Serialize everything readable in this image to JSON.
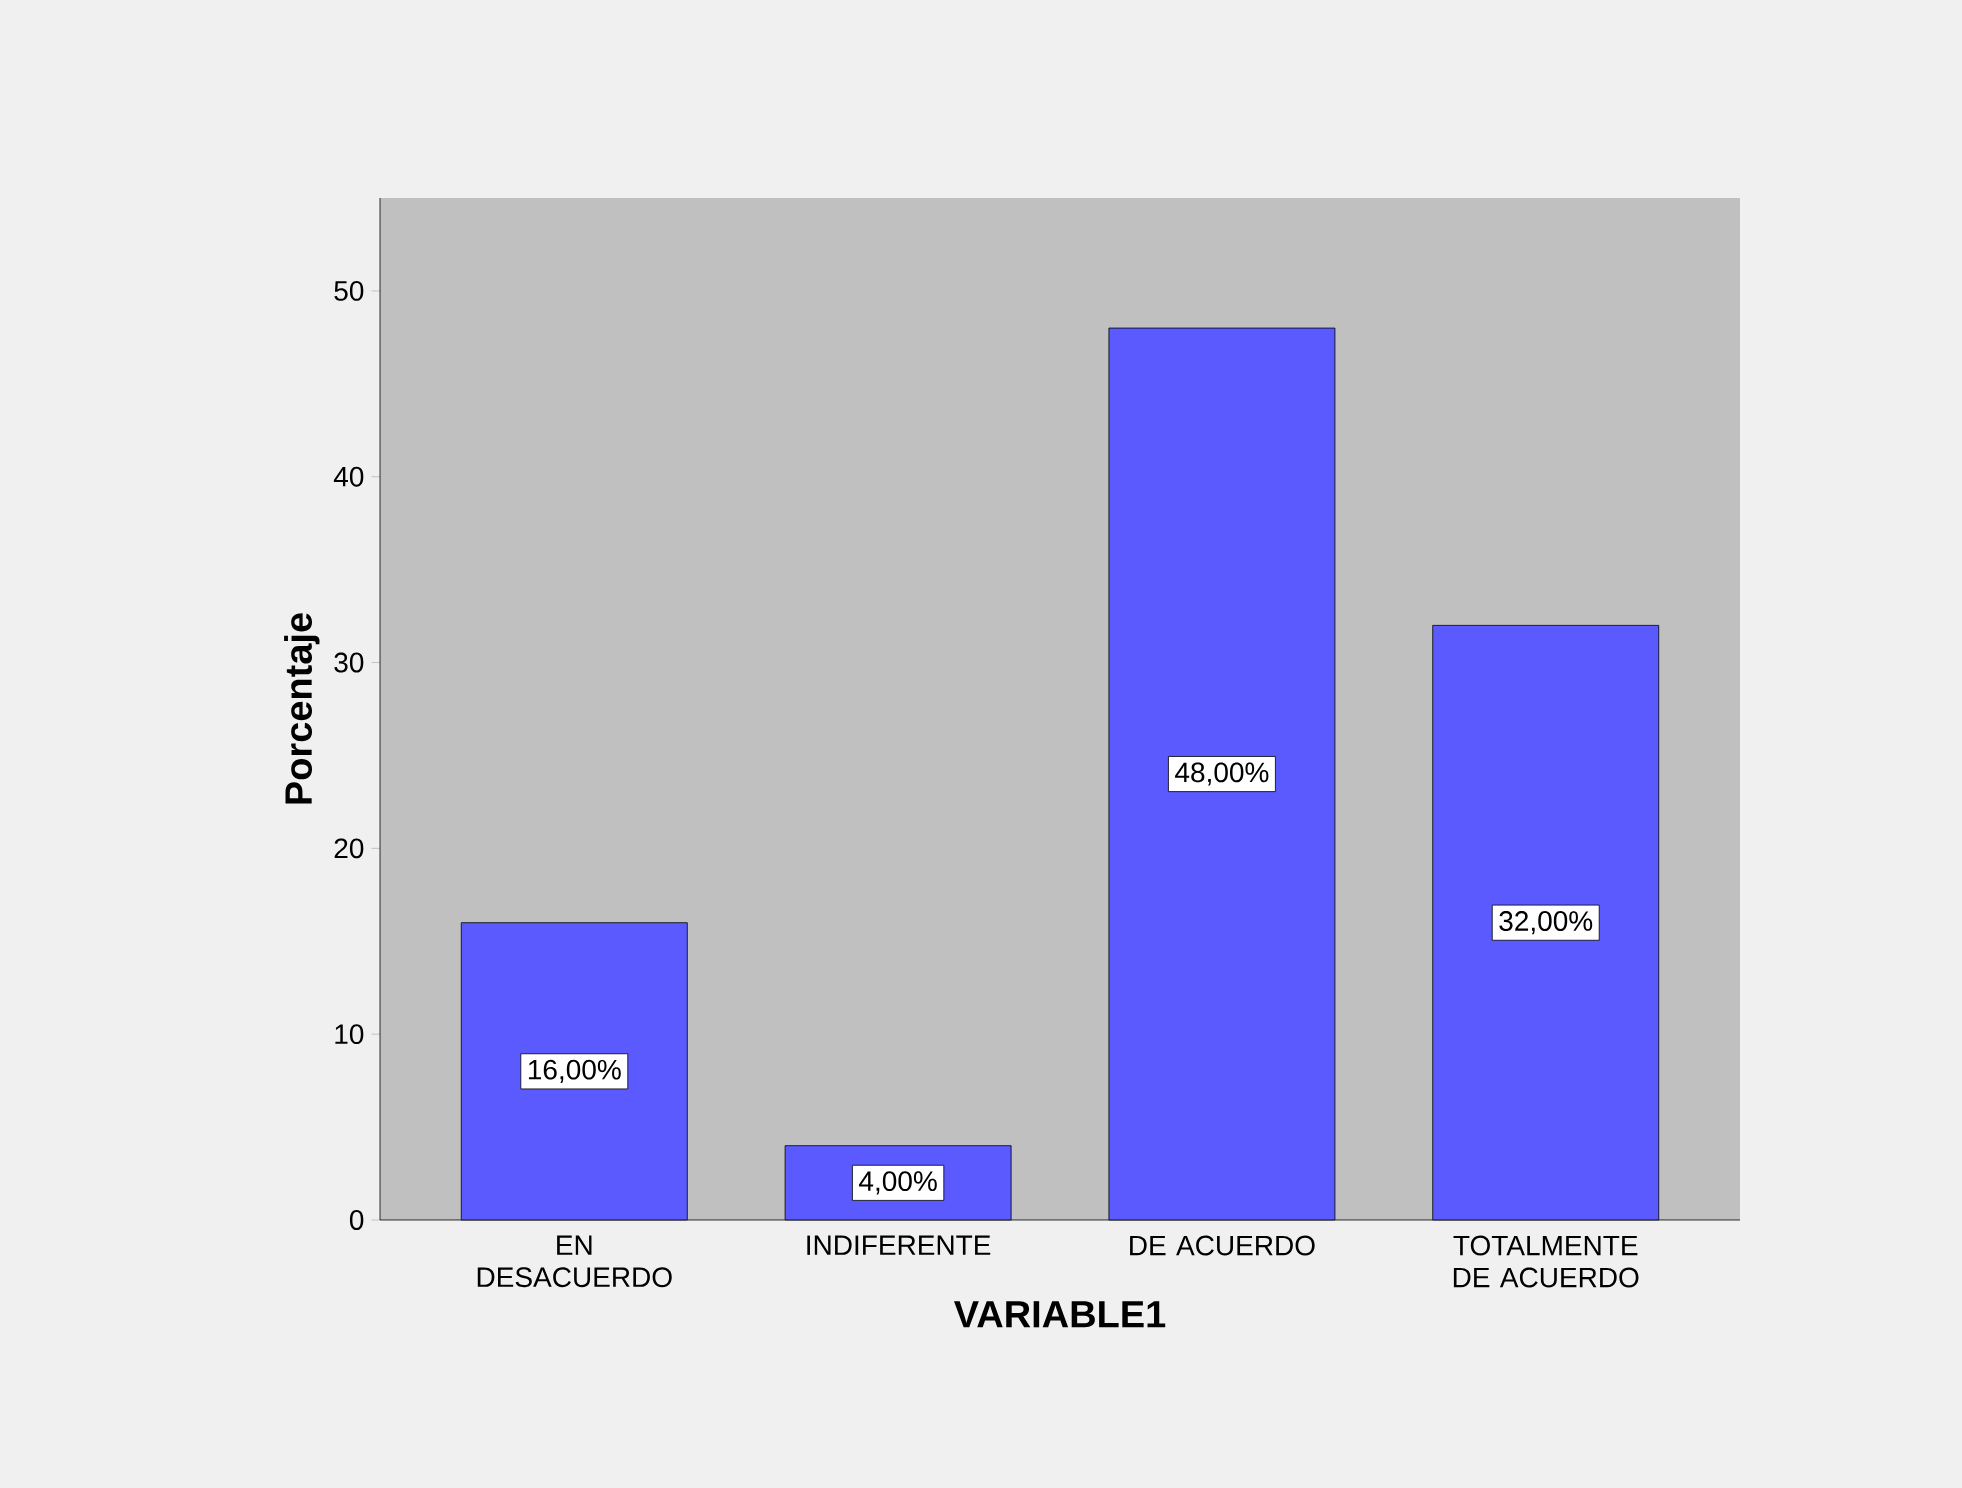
{
  "chart_data": {
    "type": "bar",
    "xlabel": "VARIABLE1",
    "ylabel": "Porcentaje",
    "categories": [
      "EN DESACUERDO",
      "INDIFERENTE",
      "DE ACUERDO",
      "TOTALMENTE DE ACUERDO"
    ],
    "values": [
      16,
      4,
      48,
      32
    ],
    "value_labels": [
      "16,00%",
      "4,00%",
      "48,00%",
      "32,00%"
    ],
    "color": "#5a5aff",
    "ylim": [
      0,
      55
    ],
    "yticks": [
      0,
      10,
      20,
      30,
      40,
      50
    ],
    "grid": false
  }
}
